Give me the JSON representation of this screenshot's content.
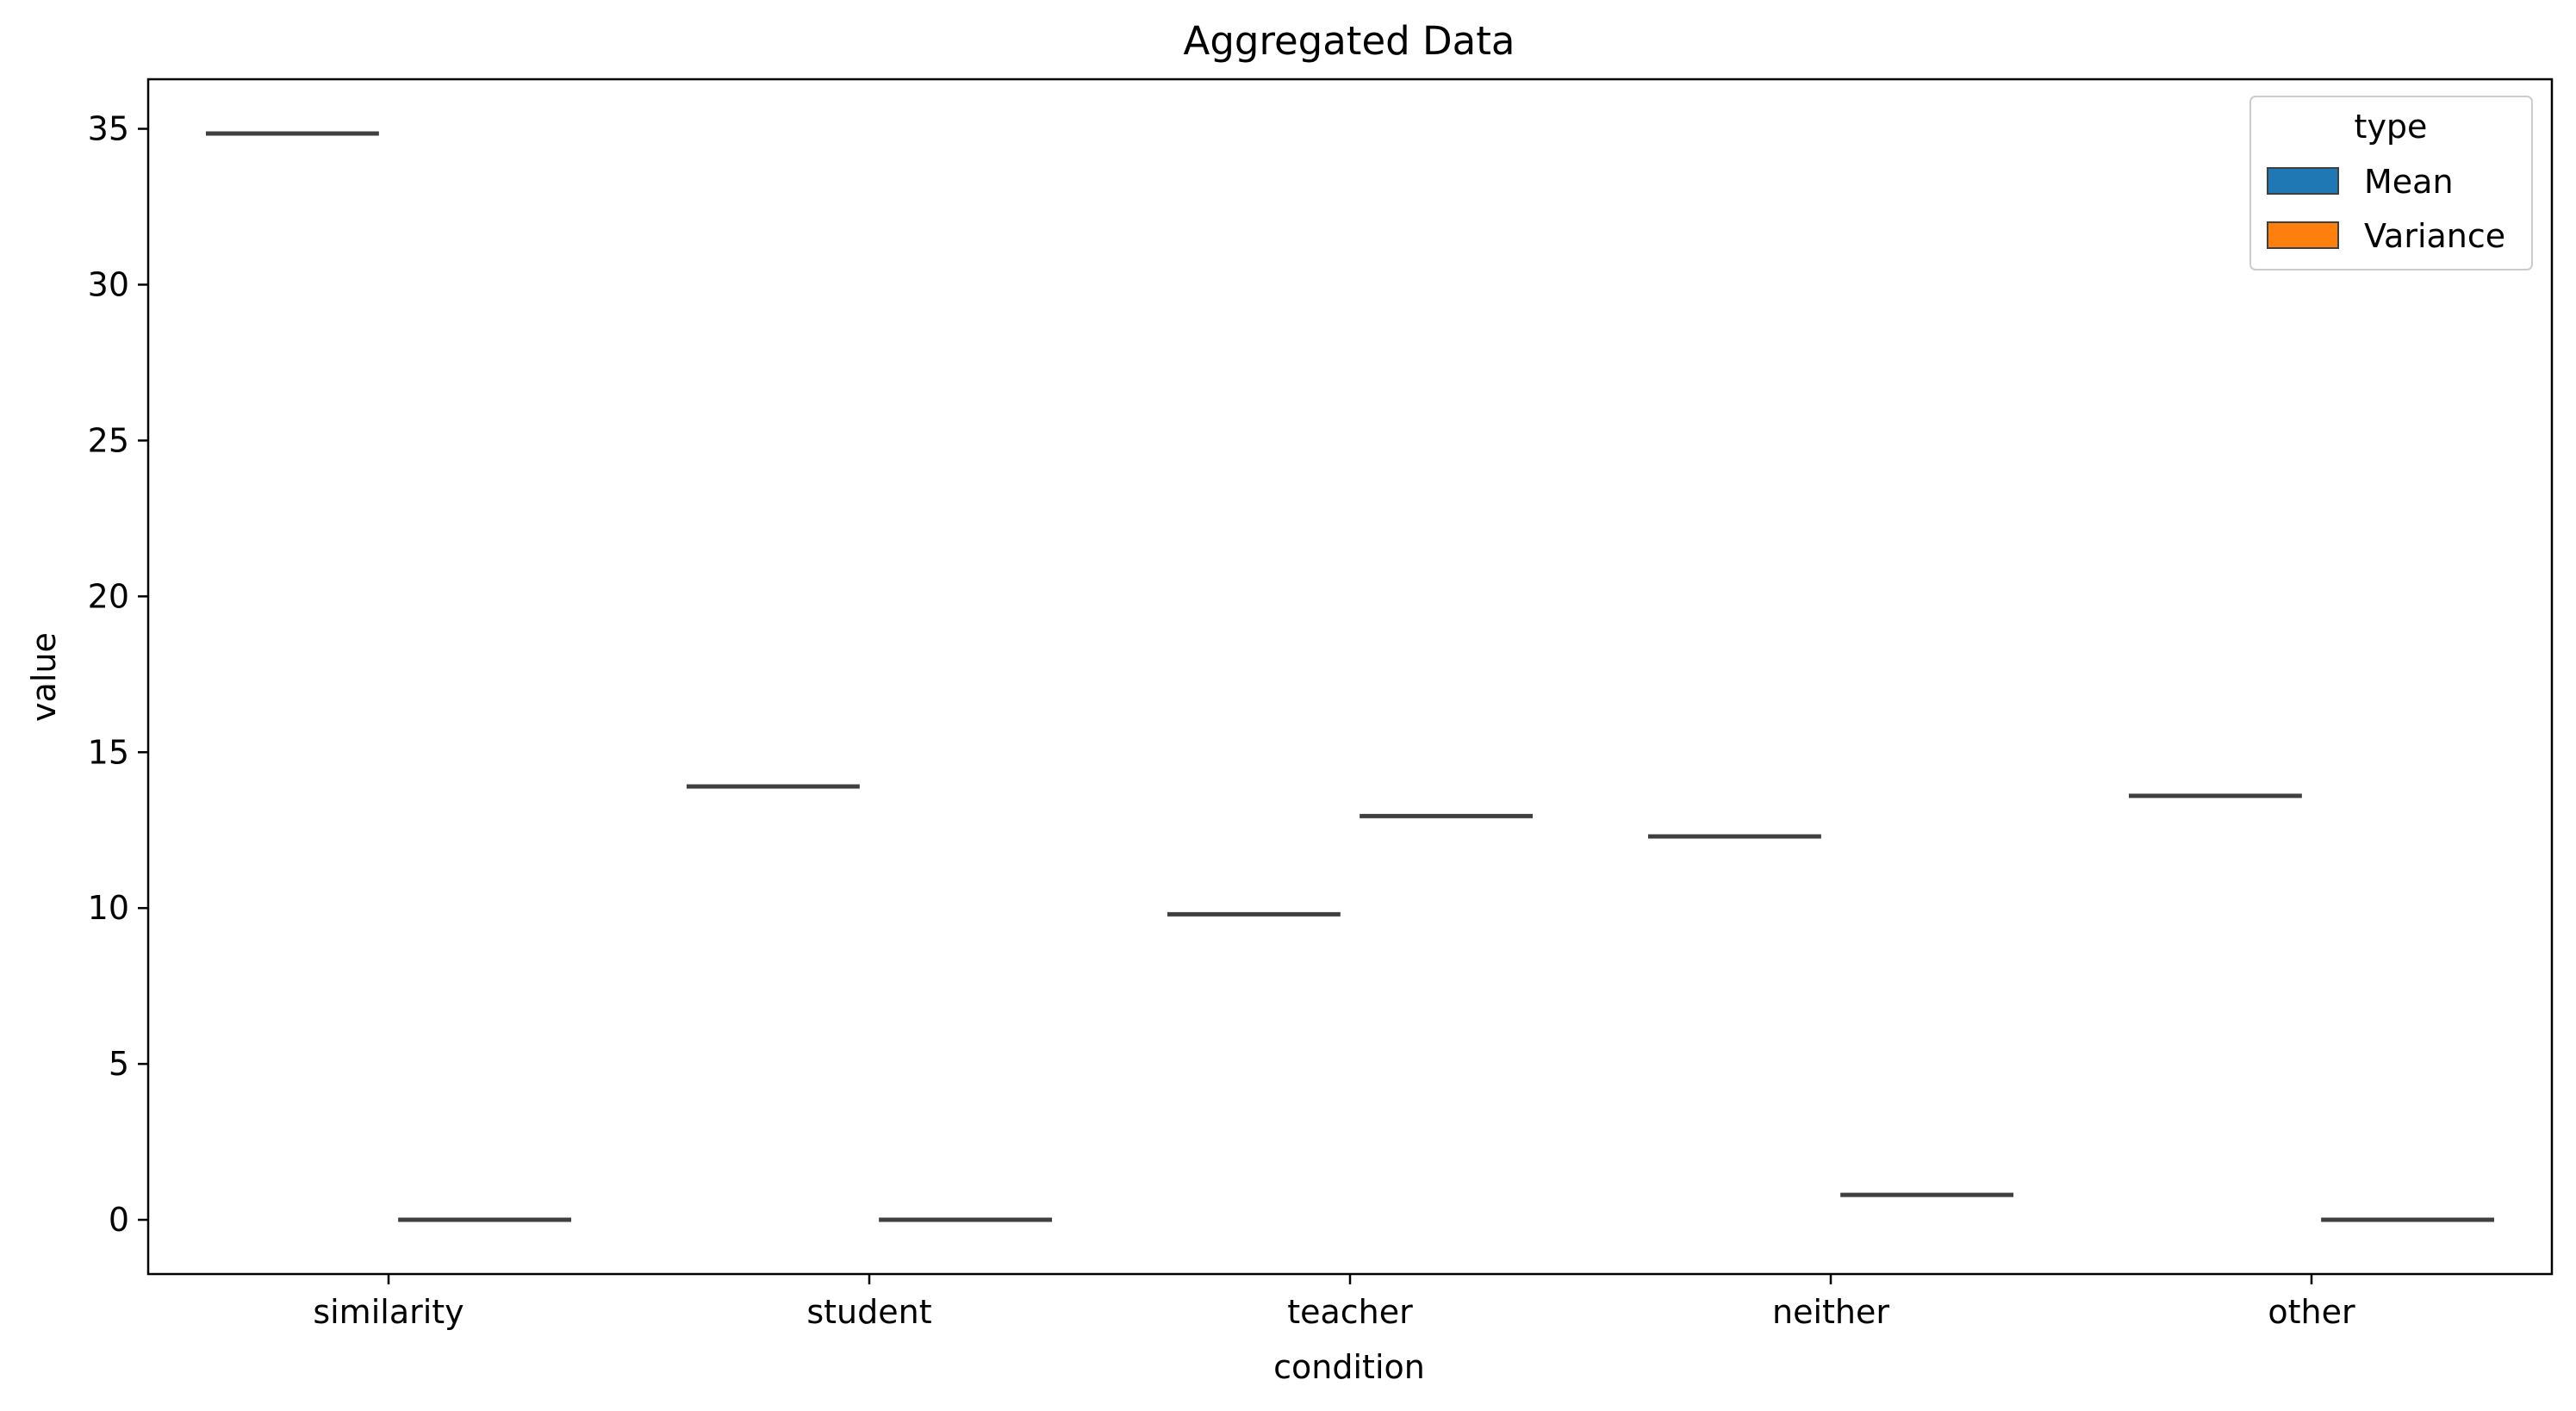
{
  "chart_data": {
    "type": "box",
    "title": "Aggregated Data",
    "xlabel": "condition",
    "ylabel": "value",
    "categories": [
      "similarity",
      "student",
      "teacher",
      "neither",
      "other"
    ],
    "series": [
      {
        "name": "Mean",
        "color": "#1f77b4",
        "values": [
          34.85,
          13.9,
          9.8,
          12.3,
          13.6
        ]
      },
      {
        "name": "Variance",
        "color": "#ff7f0e",
        "values": [
          0.0,
          0.0,
          12.95,
          0.8,
          0.0
        ]
      }
    ],
    "ylim": [
      -1.74,
      36.59
    ],
    "yticks": [
      0,
      5,
      10,
      15,
      20,
      25,
      30,
      35
    ],
    "legend": {
      "title": "type",
      "position": "top-right"
    },
    "grid": false
  }
}
